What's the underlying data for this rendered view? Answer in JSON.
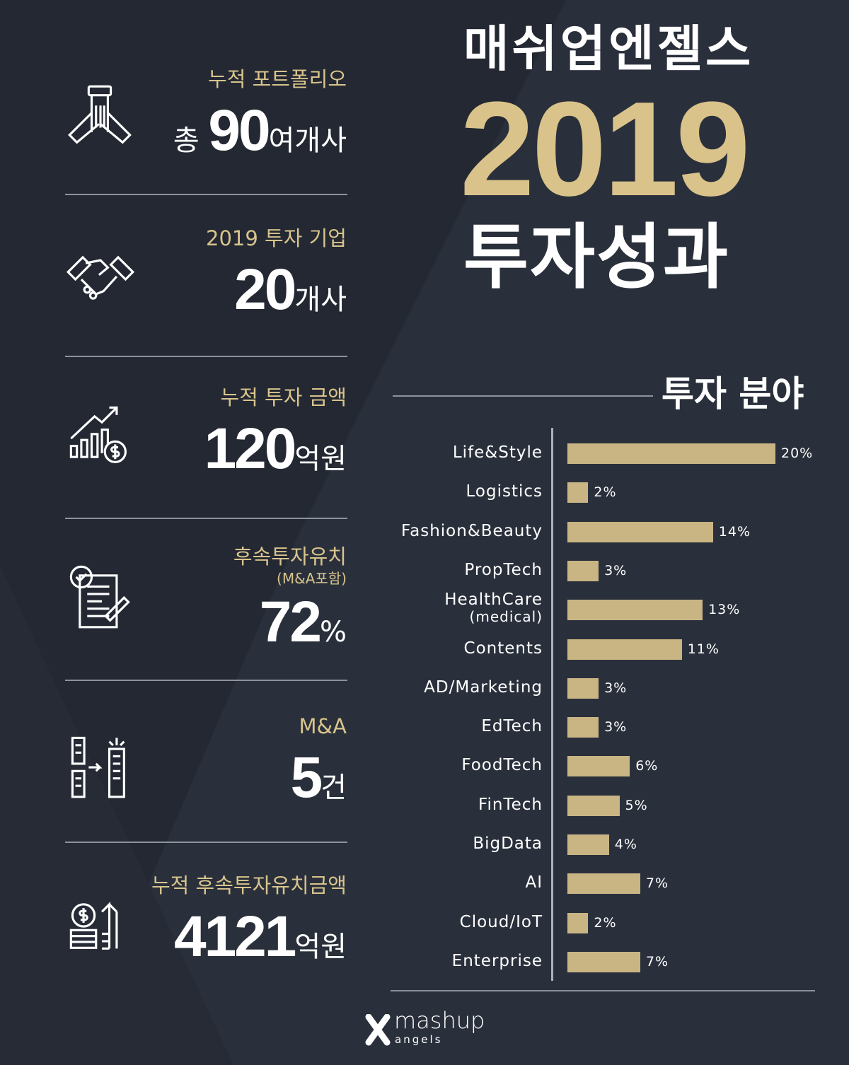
{
  "header": {
    "brand_title": "매쉬업엔젤스",
    "year": "2019",
    "subtitle": "투자성과"
  },
  "stats": [
    {
      "label": "누적 포트폴리오",
      "prefix": "총 ",
      "value": "90",
      "unit": "여개사",
      "icon": "hands-together-icon"
    },
    {
      "label": "2019 투자 기업",
      "prefix": "",
      "value": "20",
      "unit": "개사",
      "icon": "handshake-icon"
    },
    {
      "label": "누적 투자 금액",
      "prefix": "",
      "value": "120",
      "unit": "억원",
      "icon": "growth-chart-dollar-icon"
    },
    {
      "label": "후속투자유치",
      "sublabel": "(M&A포함)",
      "prefix": "",
      "value": "72",
      "unit": "%",
      "icon": "document-check-icon"
    },
    {
      "label": "M&A",
      "prefix": "",
      "value": "5",
      "unit": "건",
      "icon": "buildings-merge-icon"
    },
    {
      "label": "누적 후속투자유치금액",
      "prefix": "",
      "value": "4121",
      "unit": "억원",
      "icon": "coins-arrow-up-icon"
    }
  ],
  "colors": {
    "background": "#232833",
    "accent": "#d9c38a",
    "bar": "#c9b484"
  },
  "chart_data": {
    "type": "bar",
    "orientation": "horizontal",
    "title": "투자 분야",
    "categories": [
      "Life&Style",
      "Logistics",
      "Fashion&Beauty",
      "PropTech",
      "HealthCare",
      "Contents",
      "AD/Marketing",
      "EdTech",
      "FoodTech",
      "FinTech",
      "BigData",
      "AI",
      "Cloud/IoT",
      "Enterprise"
    ],
    "category_sublabels": {
      "HealthCare": "(medical)"
    },
    "values": [
      20,
      2,
      14,
      3,
      13,
      11,
      3,
      3,
      6,
      5,
      4,
      7,
      2,
      7
    ],
    "value_labels": [
      "20%",
      "2%",
      "14%",
      "3%",
      "13%",
      "11%",
      "3%",
      "3%",
      "6%",
      "5%",
      "4%",
      "7%",
      "2%",
      "7%"
    ],
    "unit": "%",
    "xlim": [
      0,
      20
    ],
    "grid": false
  },
  "footer": {
    "logo_text": "mashup",
    "logo_sub": "angels"
  }
}
